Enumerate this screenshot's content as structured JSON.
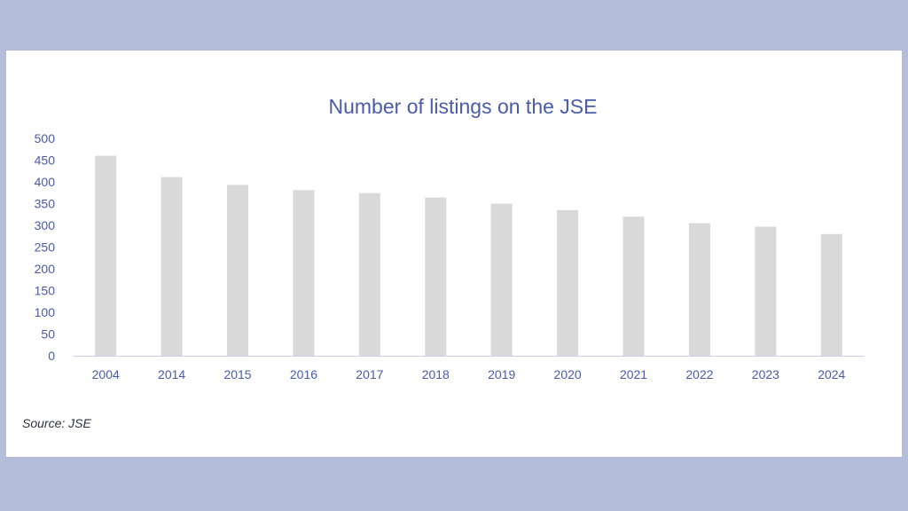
{
  "chart_data": {
    "type": "bar",
    "title": "Number of listings on the JSE",
    "categories": [
      "2004",
      "2014",
      "2015",
      "2016",
      "2017",
      "2018",
      "2019",
      "2020",
      "2021",
      "2022",
      "2023",
      "2024"
    ],
    "values": [
      460,
      411,
      393,
      381,
      374,
      364,
      350,
      335,
      320,
      305,
      297,
      280
    ],
    "xlabel": "",
    "ylabel": "",
    "ylim": [
      0,
      500
    ],
    "yticks": [
      "0",
      "50",
      "100",
      "150",
      "200",
      "250",
      "300",
      "350",
      "400",
      "450",
      "500"
    ],
    "grid": false,
    "legend": "none",
    "colors": {
      "bar": "#d9d9d9",
      "text": "#4a5ba8",
      "axis": "#c8cfe6"
    }
  },
  "source": "Source: JSE",
  "colors": {
    "background": "#b3bcd9",
    "card": "#ffffff"
  }
}
